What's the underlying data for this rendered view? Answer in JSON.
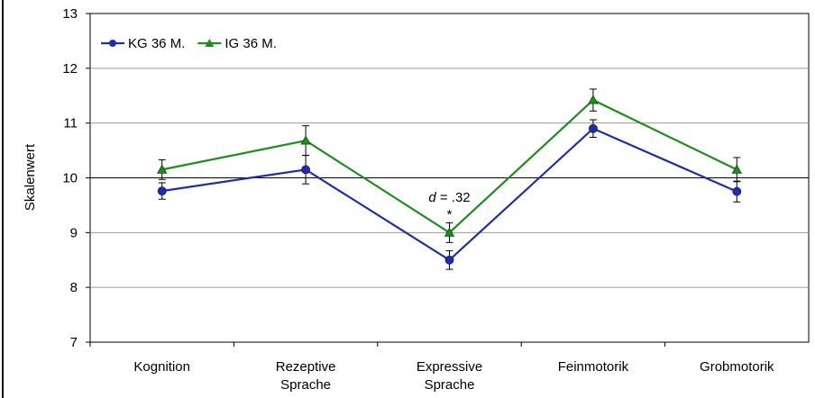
{
  "chart_data": {
    "type": "line",
    "categories": [
      [
        "Kognition"
      ],
      [
        "Rezeptive",
        "Sprache"
      ],
      [
        "Expressive",
        "Sprache"
      ],
      [
        "Feinmotorik"
      ],
      [
        "Grobmotorik"
      ]
    ],
    "ylabel": "Skalenwert",
    "ylim": [
      7,
      13
    ],
    "yticks": [
      7,
      8,
      9,
      10,
      11,
      12,
      13
    ],
    "reference_line": 10,
    "grid": true,
    "legend": "top-left",
    "series": [
      {
        "name": "KG 36 M.",
        "color": "#1f2ea8",
        "marker": "circle",
        "values": [
          9.76,
          10.15,
          8.5,
          10.9,
          9.75
        ],
        "errors": [
          0.15,
          0.26,
          0.17,
          0.16,
          0.19
        ]
      },
      {
        "name": "IG 36 M.",
        "color": "#1e8c1e",
        "marker": "triangle",
        "values": [
          10.15,
          10.68,
          9.0,
          11.42,
          10.15
        ],
        "errors": [
          0.18,
          0.27,
          0.18,
          0.2,
          0.22
        ]
      }
    ],
    "annotations": [
      {
        "category_index": 2,
        "prefix": "d",
        "text": " = .32",
        "marker": "*"
      }
    ]
  }
}
